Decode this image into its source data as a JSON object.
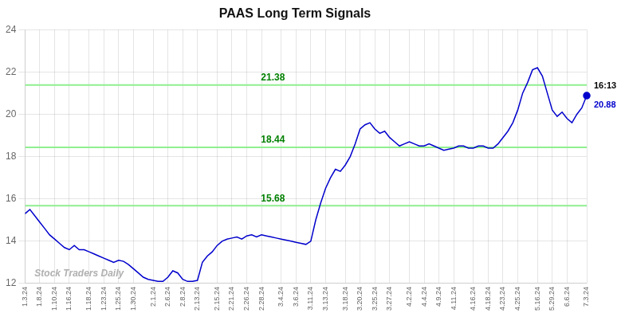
{
  "chart_data": {
    "type": "line",
    "title": "PAAS Long Term Signals",
    "categories": [
      "1.3.24",
      null,
      null,
      "1.8.24",
      null,
      null,
      "1.10.24",
      null,
      null,
      "1.16.24",
      null,
      null,
      null,
      "1.18.24",
      null,
      null,
      "1.23.24",
      null,
      null,
      "1.25.24",
      null,
      null,
      "1.30.24",
      null,
      null,
      null,
      "2.1.24",
      null,
      null,
      "2.6.24",
      null,
      null,
      "2.8.24",
      null,
      null,
      "2.13.24",
      null,
      null,
      null,
      "2.15.24",
      null,
      null,
      "2.21.24",
      null,
      null,
      "2.26.24",
      null,
      null,
      "2.28.24",
      null,
      null,
      null,
      "3.4.24",
      null,
      null,
      "3.6.24",
      null,
      null,
      "3.11.24",
      null,
      null,
      "3.13.24",
      null,
      null,
      null,
      "3.18.24",
      null,
      null,
      "3.20.24",
      null,
      null,
      "3.25.24",
      null,
      null,
      "3.27.24",
      null,
      null,
      null,
      "4.2.24",
      null,
      null,
      "4.4.24",
      null,
      null,
      "4.9.24",
      null,
      null,
      "4.11.24",
      null,
      null,
      null,
      "4.16.24",
      null,
      null,
      "4.18.24",
      null,
      null,
      "4.23.24",
      null,
      null,
      "4.25.24",
      null,
      null,
      null,
      "5.16.24",
      null,
      null,
      "5.29.24",
      null,
      null,
      "6.6.24",
      null,
      null,
      null,
      "7.3.24"
    ],
    "values": [
      15.3,
      15.5,
      15.2,
      14.9,
      14.6,
      14.3,
      14.1,
      13.9,
      13.7,
      13.6,
      13.8,
      13.6,
      13.6,
      13.5,
      13.4,
      13.3,
      13.2,
      13.1,
      13.0,
      13.1,
      13.05,
      12.9,
      12.7,
      12.5,
      12.3,
      12.2,
      12.15,
      12.1,
      12.1,
      12.3,
      12.6,
      12.5,
      12.2,
      12.1,
      12.1,
      12.15,
      13.0,
      13.3,
      13.5,
      13.8,
      14.0,
      14.1,
      14.15,
      14.2,
      14.1,
      14.25,
      14.3,
      14.2,
      14.3,
      14.25,
      14.2,
      14.15,
      14.1,
      14.05,
      14.0,
      13.95,
      13.9,
      13.85,
      14.0,
      15.0,
      15.8,
      16.5,
      17.0,
      17.4,
      17.3,
      17.6,
      18.0,
      18.6,
      19.3,
      19.5,
      19.6,
      19.3,
      19.1,
      19.2,
      18.9,
      18.7,
      18.5,
      18.6,
      18.7,
      18.6,
      18.5,
      18.5,
      18.6,
      18.5,
      18.4,
      18.3,
      18.35,
      18.4,
      18.5,
      18.5,
      18.4,
      18.4,
      18.5,
      18.5,
      18.4,
      18.4,
      18.6,
      18.9,
      19.2,
      19.6,
      20.2,
      21.0,
      21.5,
      22.1,
      22.2,
      21.8,
      21.0,
      20.2,
      19.9,
      20.1,
      19.8,
      19.6,
      20.0,
      20.3,
      20.88
    ],
    "color": "#0000CC",
    "marker": "last",
    "ylim": [
      12,
      24
    ],
    "yticks": [
      12,
      14,
      16,
      18,
      20,
      22,
      24
    ],
    "grid": true,
    "hlines": {
      "color": "#90EE90",
      "label_color": "#008000",
      "lines": [
        {
          "value": 21.38,
          "label": "21.38"
        },
        {
          "value": 18.44,
          "label": "18.44"
        },
        {
          "value": 15.68,
          "label": "15.68"
        }
      ]
    },
    "annotations": [
      {
        "text": "16:13",
        "color": "#000000"
      },
      {
        "text": "20.88",
        "color": "#0000CC"
      }
    ],
    "watermark": {
      "text": "Stock Traders Daily",
      "color": "#b0b0b0"
    }
  }
}
